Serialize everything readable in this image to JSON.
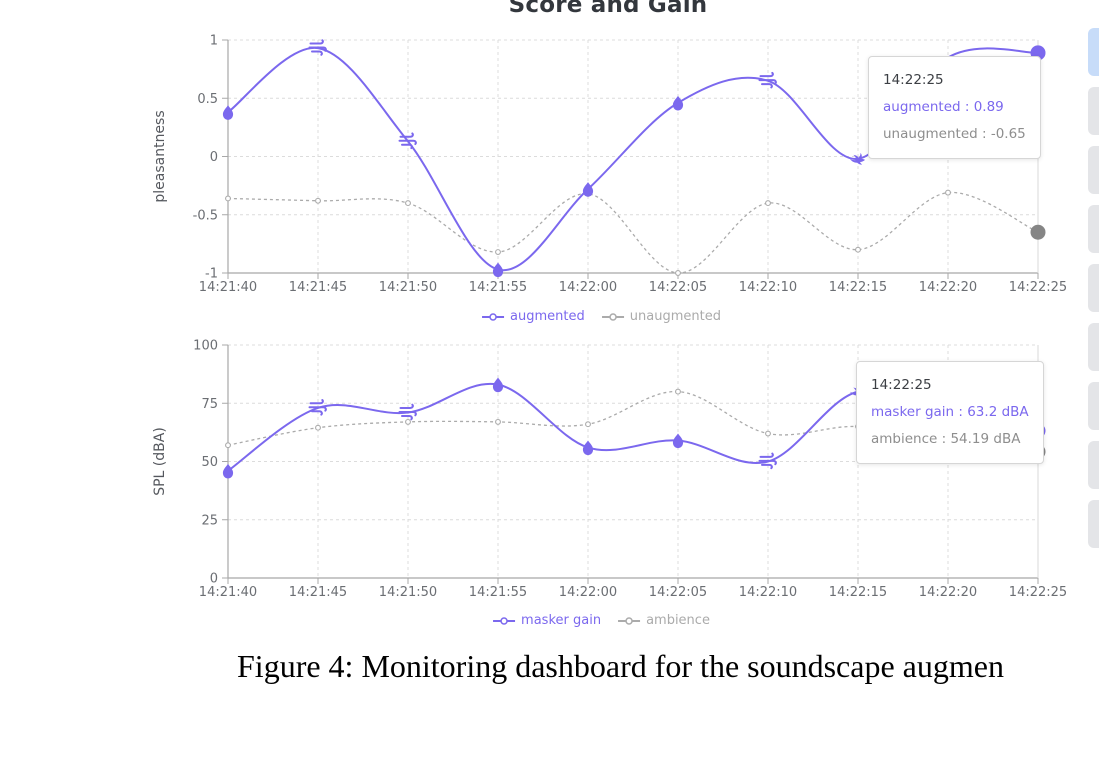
{
  "title": "Score and Gain",
  "figure_caption": "Figure 4: Monitoring dashboard for the soundscape augmen",
  "colors": {
    "accent": "#7b68ee",
    "muted": "#ababab",
    "muted_point": "#858585",
    "tooltip_title": "#3c3f44",
    "tooltip_muted_text": "#8e8e8e",
    "panel_active": "#c7dcf9",
    "panel_inactive": "#e4e5e8"
  },
  "right_panel": {
    "items": [
      {
        "state": "active"
      },
      {
        "state": "inactive"
      },
      {
        "state": "inactive"
      },
      {
        "state": "inactive"
      },
      {
        "state": "inactive"
      },
      {
        "state": "inactive"
      },
      {
        "state": "inactive"
      },
      {
        "state": "inactive"
      },
      {
        "state": "inactive"
      }
    ]
  },
  "chart_data": [
    {
      "type": "line",
      "title": "Score and Gain",
      "xlabel": "",
      "ylabel": "pleasantness",
      "ylim": [
        -1,
        1
      ],
      "yticks": [
        1,
        0.5,
        0,
        -0.5,
        -1
      ],
      "ytick_labels": [
        "1",
        "0.5",
        "0",
        "-0.5",
        "-1"
      ],
      "grid": true,
      "legend_position": "bottom",
      "x": [
        "14:21:40",
        "14:21:45",
        "14:21:50",
        "14:21:55",
        "14:22:00",
        "14:22:05",
        "14:22:10",
        "14:22:15",
        "14:22:20",
        "14:22:25"
      ],
      "series": [
        {
          "name": "augmented",
          "color_key": "accent",
          "line_style": "solid",
          "values": [
            0.38,
            0.93,
            0.13,
            -0.97,
            -0.28,
            0.46,
            0.65,
            -0.02,
            0.85,
            0.89
          ],
          "point_icons": [
            "water",
            "wind",
            "wind",
            "water",
            "water",
            "water",
            "wind",
            "bird",
            "none",
            "current"
          ]
        },
        {
          "name": "unaugmented",
          "color_key": "muted",
          "line_style": "dashed",
          "values": [
            -0.36,
            -0.38,
            -0.4,
            -0.82,
            -0.32,
            -1.0,
            -0.4,
            -0.8,
            -0.31,
            -0.65
          ],
          "point_icons": null
        }
      ],
      "tooltip": {
        "title": "14:22:25",
        "rows": [
          {
            "text": "augmented : 0.89",
            "color_key": "accent"
          },
          {
            "text": "unaugmented : -0.65",
            "color_key": "tooltip_muted_text"
          }
        ]
      }
    },
    {
      "type": "line",
      "title": "",
      "xlabel": "",
      "ylabel": "SPL (dBA)",
      "ylim": [
        0,
        100
      ],
      "yticks": [
        100,
        75,
        50,
        25,
        0
      ],
      "ytick_labels": [
        "100",
        "75",
        "50",
        "25",
        "0"
      ],
      "grid": true,
      "legend_position": "bottom",
      "x": [
        "14:21:40",
        "14:21:45",
        "14:21:50",
        "14:21:55",
        "14:22:00",
        "14:22:05",
        "14:22:10",
        "14:22:15",
        "14:22:20",
        "14:22:25"
      ],
      "series": [
        {
          "name": "masker gain",
          "color_key": "accent",
          "line_style": "solid",
          "values": [
            46,
            73,
            71,
            83,
            56,
            59,
            50,
            80,
            68,
            63.2
          ],
          "point_icons": [
            "water",
            "wind",
            "wind",
            "water",
            "water",
            "water",
            "wind",
            "bird",
            "none",
            "current"
          ]
        },
        {
          "name": "ambience",
          "color_key": "muted",
          "line_style": "dashed",
          "values": [
            57,
            64.5,
            67,
            67,
            66,
            80,
            62,
            65,
            58,
            54.19
          ],
          "point_icons": null
        }
      ],
      "tooltip": {
        "title": "14:22:25",
        "rows": [
          {
            "text": "masker gain : 63.2 dBA",
            "color_key": "accent"
          },
          {
            "text": "ambience : 54.19 dBA",
            "color_key": "tooltip_muted_text"
          }
        ]
      }
    }
  ]
}
